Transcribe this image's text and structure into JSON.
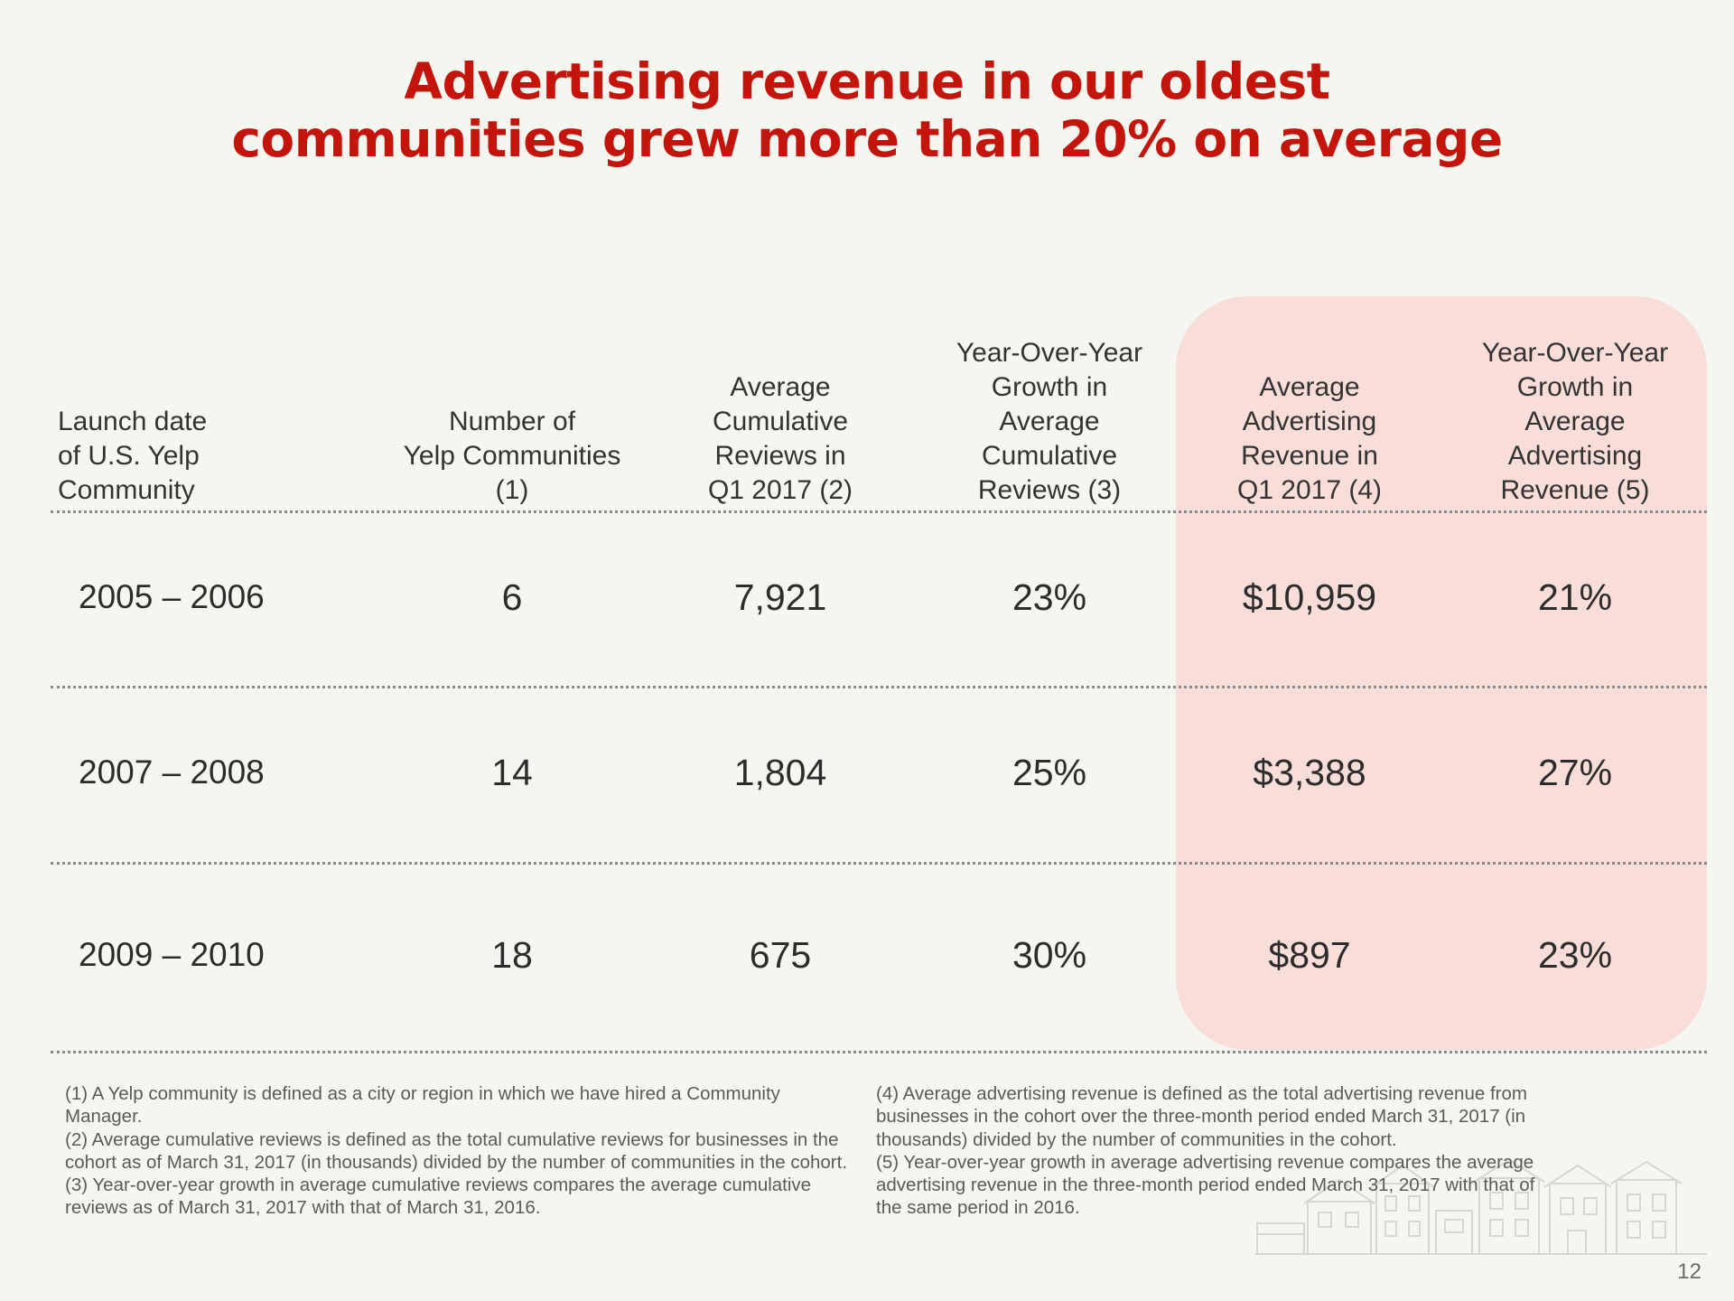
{
  "title": {
    "line1": "Advertising revenue in our oldest",
    "line2": "communities grew more than 20% on average"
  },
  "table": {
    "headers": [
      {
        "lines": [
          "Launch date",
          "of U.S. Yelp",
          "Community"
        ]
      },
      {
        "lines": [
          "Number of",
          "Yelp Communities",
          "(1)"
        ]
      },
      {
        "lines": [
          "Average",
          "Cumulative",
          "Reviews in",
          "Q1 2017 (2)"
        ]
      },
      {
        "lines": [
          "Year-Over-Year",
          "Growth in",
          "Average",
          "Cumulative",
          "Reviews (3)"
        ]
      },
      {
        "lines": [
          "Average",
          "Advertising",
          "Revenue in",
          "Q1 2017 (4)"
        ]
      },
      {
        "lines": [
          "Year-Over-Year",
          "Growth in",
          "Average",
          "Advertising",
          "Revenue (5)"
        ]
      }
    ],
    "rows": [
      {
        "launch": "2005 – 2006",
        "communities": "6",
        "reviews": "7,921",
        "reviews_growth": "23%",
        "ad_revenue": "$10,959",
        "ad_revenue_growth": "21%"
      },
      {
        "launch": "2007 – 2008",
        "communities": "14",
        "reviews": "1,804",
        "reviews_growth": "25%",
        "ad_revenue": "$3,388",
        "ad_revenue_growth": "27%"
      },
      {
        "launch": "2009 – 2010",
        "communities": "18",
        "reviews": "675",
        "reviews_growth": "30%",
        "ad_revenue": "$897",
        "ad_revenue_growth": "23%"
      }
    ]
  },
  "footnotes": {
    "left": [
      "(1) A Yelp community is defined as a city or region in which we have hired a Community Manager.",
      "(2) Average cumulative reviews is defined as the total cumulative reviews for businesses in the cohort as of March 31, 2017 (in thousands) divided by the number of communities in the cohort.",
      "(3) Year-over-year growth in average cumulative reviews compares the average cumulative reviews as of March 31, 2017 with that of March 31, 2016."
    ],
    "right": [
      "(4) Average advertising revenue is defined as the total advertising revenue from businesses in the cohort over the three-month period ended March 31, 2017 (in thousands) divided by the number of communities in the cohort.",
      "(5) Year-over-year growth in average advertising revenue compares the average advertising revenue in the three-month period ended March 31, 2017 with that of the same period in 2016."
    ]
  },
  "decoration": {
    "icon": "houses-illustration-icon"
  },
  "page_number": "12",
  "colors": {
    "title": "#c4150c",
    "highlight": "#f8ddd8",
    "background": "#f6f6f1"
  }
}
